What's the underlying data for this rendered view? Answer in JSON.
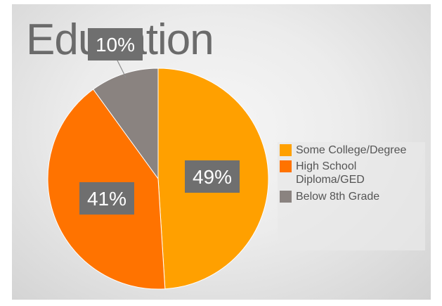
{
  "slide": {
    "title": "Education"
  },
  "chart_data": {
    "type": "pie",
    "categories": [
      "Some College/Degree",
      "High School Diploma/GED",
      "Below 8th Grade"
    ],
    "values": [
      49,
      41,
      10
    ],
    "data_labels": [
      "49%",
      "41%",
      "10%"
    ],
    "colors": [
      "#ffa000",
      "#ff7300",
      "#8a8380"
    ],
    "legend_position": "right"
  },
  "legend": {
    "items": [
      {
        "label": "Some College/Degree",
        "color": "#ffa000"
      },
      {
        "label": "High School Diploma/GED",
        "color": "#ff7300"
      },
      {
        "label": "Below 8th Grade",
        "color": "#8a8380"
      }
    ]
  }
}
